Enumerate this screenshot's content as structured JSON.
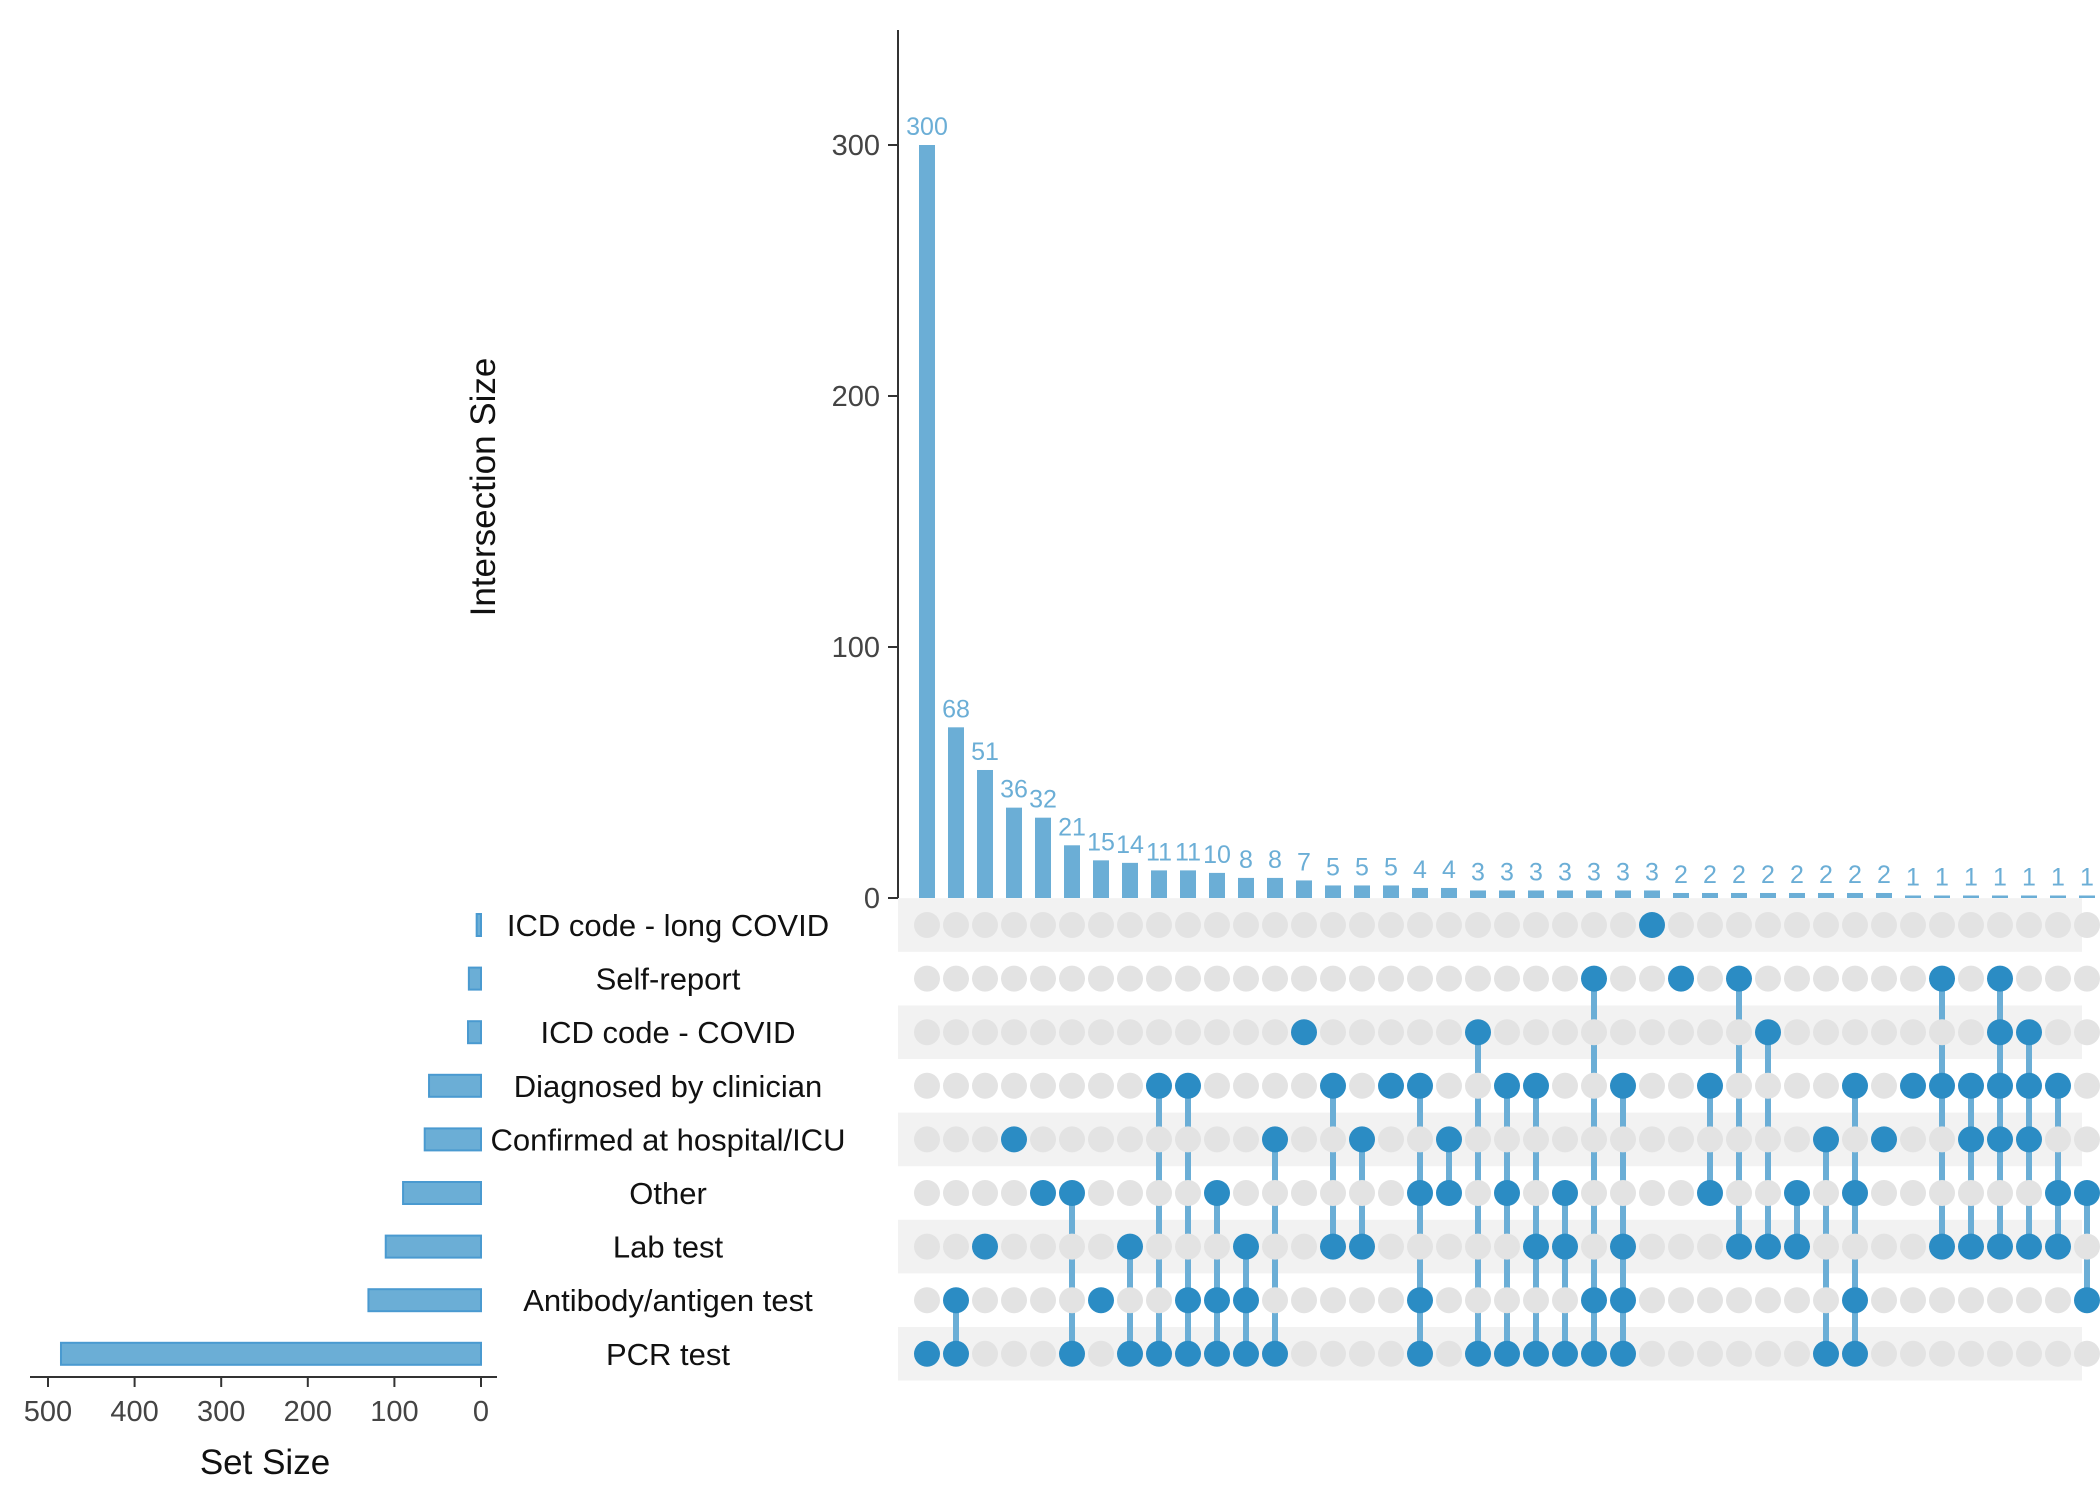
{
  "chart_data": {
    "type": "bar",
    "kind": "upset",
    "ylabel": "Intersection Size",
    "xlabel": "Set Size",
    "intersection_axis": {
      "ylim": [
        0,
        340
      ],
      "ticks": [
        0,
        100,
        200,
        300
      ]
    },
    "setsize_axis": {
      "xlim": [
        500,
        0
      ],
      "ticks": [
        500,
        400,
        300,
        200,
        100,
        0
      ]
    },
    "colors": {
      "bar": "#6baed6",
      "dot_active": "#2b8cc4",
      "dot_inactive": "#e3e3e3",
      "stripe": "#f2f2f2",
      "label": "#6baed6"
    },
    "sets": [
      {
        "name": "ICD code - long COVID",
        "size": 5
      },
      {
        "name": "Self-report",
        "size": 14
      },
      {
        "name": "ICD code - COVID",
        "size": 15
      },
      {
        "name": "Diagnosed by clinician",
        "size": 60
      },
      {
        "name": "Confirmed at hospital/ICU",
        "size": 65
      },
      {
        "name": "Other",
        "size": 90
      },
      {
        "name": "Lab test",
        "size": 110
      },
      {
        "name": "Antibody/antigen test",
        "size": 130
      },
      {
        "name": "PCR test",
        "size": 485
      }
    ],
    "intersections": [
      {
        "value": 300,
        "label": "300",
        "members": [
          8
        ]
      },
      {
        "value": 68,
        "label": "68",
        "members": [
          7,
          8
        ]
      },
      {
        "value": 51,
        "label": "51",
        "members": [
          6
        ]
      },
      {
        "value": 36,
        "label": "36",
        "members": [
          4
        ]
      },
      {
        "value": 32,
        "label": "32",
        "members": [
          5
        ]
      },
      {
        "value": 21,
        "label": "21",
        "members": [
          5,
          8
        ]
      },
      {
        "value": 15,
        "label": "15",
        "members": [
          7
        ]
      },
      {
        "value": 14,
        "label": "14",
        "members": [
          6,
          8
        ]
      },
      {
        "value": 11,
        "label": "11",
        "members": [
          3,
          8
        ]
      },
      {
        "value": 11,
        "label": "11",
        "members": [
          3,
          7,
          8
        ]
      },
      {
        "value": 10,
        "label": "10",
        "members": [
          5,
          7,
          8
        ]
      },
      {
        "value": 8,
        "label": "8",
        "members": [
          6,
          7,
          8
        ]
      },
      {
        "value": 8,
        "label": "8",
        "members": [
          4,
          8
        ]
      },
      {
        "value": 7,
        "label": "7",
        "members": [
          2
        ]
      },
      {
        "value": 5,
        "label": "5",
        "members": [
          3,
          6
        ]
      },
      {
        "value": 5,
        "label": "5",
        "members": [
          4,
          6
        ]
      },
      {
        "value": 5,
        "label": "5",
        "members": [
          3
        ]
      },
      {
        "value": 4,
        "label": "4",
        "members": [
          3,
          5,
          7,
          8
        ]
      },
      {
        "value": 4,
        "label": "4",
        "members": [
          4,
          5
        ]
      },
      {
        "value": 3,
        "label": "3",
        "members": [
          2,
          8
        ]
      },
      {
        "value": 3,
        "label": "3",
        "members": [
          3,
          5,
          8
        ]
      },
      {
        "value": 3,
        "label": "3",
        "members": [
          3,
          6,
          8
        ]
      },
      {
        "value": 3,
        "label": "3",
        "members": [
          5,
          6,
          8
        ]
      },
      {
        "value": 3,
        "label": "3",
        "members": [
          1,
          7,
          8
        ]
      },
      {
        "value": 3,
        "label": "3",
        "members": [
          3,
          6,
          7,
          8
        ]
      },
      {
        "value": 3,
        "label": "3",
        "members": [
          0
        ]
      },
      {
        "value": 2,
        "label": "2",
        "members": [
          1
        ]
      },
      {
        "value": 2,
        "label": "2",
        "members": [
          3,
          5
        ]
      },
      {
        "value": 2,
        "label": "2",
        "members": [
          1,
          6
        ]
      },
      {
        "value": 2,
        "label": "2",
        "members": [
          2,
          6
        ]
      },
      {
        "value": 2,
        "label": "2",
        "members": [
          5,
          6
        ]
      },
      {
        "value": 2,
        "label": "2",
        "members": [
          4,
          8
        ]
      },
      {
        "value": 2,
        "label": "2",
        "members": [
          3,
          5,
          7,
          8
        ]
      },
      {
        "value": 2,
        "label": "2",
        "members": [
          4
        ]
      },
      {
        "value": 1,
        "label": "1",
        "members": [
          3
        ]
      },
      {
        "value": 1,
        "label": "1",
        "members": [
          1,
          3,
          6
        ]
      },
      {
        "value": 1,
        "label": "1",
        "members": [
          3,
          4,
          6
        ]
      },
      {
        "value": 1,
        "label": "1",
        "members": [
          1,
          2,
          3,
          4,
          6
        ]
      },
      {
        "value": 1,
        "label": "1",
        "members": [
          2,
          3,
          4,
          6
        ]
      },
      {
        "value": 1,
        "label": "1",
        "members": [
          3,
          5,
          6
        ]
      },
      {
        "value": 1,
        "label": "1",
        "members": [
          5,
          7
        ]
      }
    ]
  }
}
